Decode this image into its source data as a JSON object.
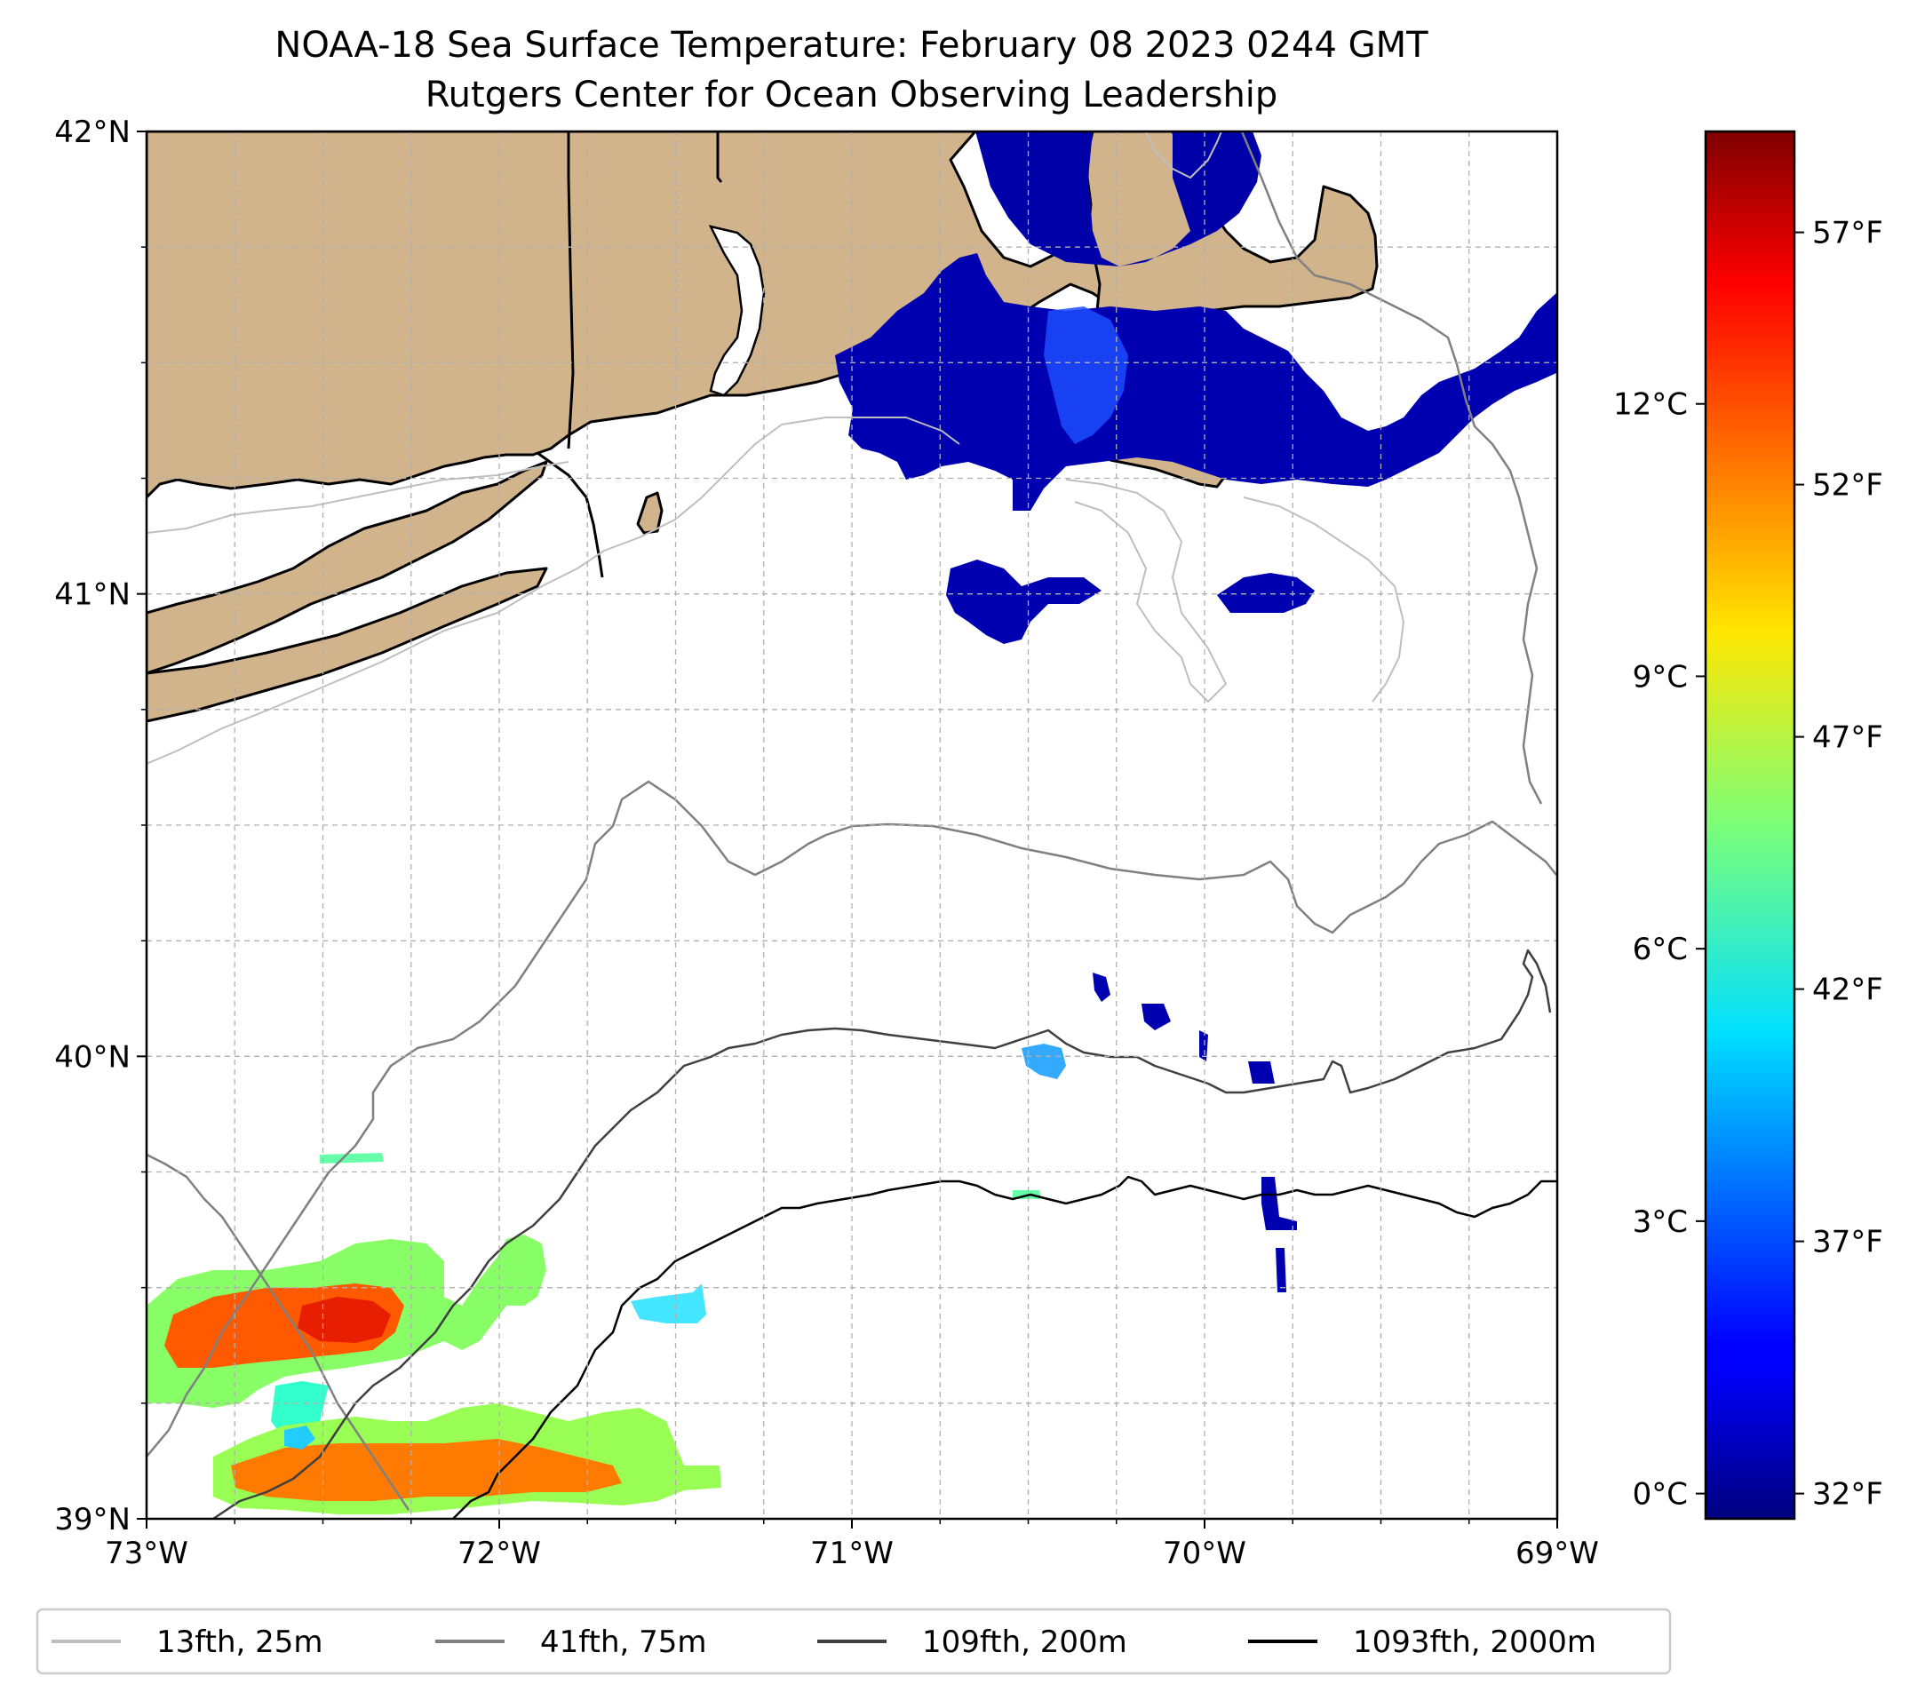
{
  "title": {
    "line1": "NOAA-18 Sea Surface Temperature: February 08 2023 0244 GMT",
    "line2": "Rutgers Center for Ocean Observing Leadership"
  },
  "map": {
    "lon_range": [
      -73,
      -69
    ],
    "lat_range": [
      39,
      42
    ],
    "lon_ticks": [
      {
        "value": -73,
        "label": "73°W"
      },
      {
        "value": -72,
        "label": "72°W"
      },
      {
        "value": -71,
        "label": "71°W"
      },
      {
        "value": -70,
        "label": "70°W"
      },
      {
        "value": -69,
        "label": "69°W"
      }
    ],
    "lat_ticks": [
      {
        "value": 39,
        "label": "39°N"
      },
      {
        "value": 40,
        "label": "40°N"
      },
      {
        "value": 41,
        "label": "41°N"
      },
      {
        "value": 42,
        "label": "42°N"
      }
    ],
    "minor_grid_step_lon": 0.25,
    "minor_grid_step_lat": 0.25,
    "grid": true,
    "land_color": "#d2b48c",
    "colormap": "jet"
  },
  "colorbar": {
    "celsius_ticks": [
      {
        "value": 0,
        "label": "0°C"
      },
      {
        "value": 3,
        "label": "3°C"
      },
      {
        "value": 6,
        "label": "6°C"
      },
      {
        "value": 9,
        "label": "9°C"
      },
      {
        "value": 12,
        "label": "12°C"
      }
    ],
    "fahrenheit_ticks": [
      {
        "value": 32,
        "label": "32°F"
      },
      {
        "value": 37,
        "label": "37°F"
      },
      {
        "value": 42,
        "label": "42°F"
      },
      {
        "value": 47,
        "label": "47°F"
      },
      {
        "value": 52,
        "label": "52°F"
      },
      {
        "value": 57,
        "label": "57°F"
      }
    ],
    "range_f": [
      31.5,
      59
    ]
  },
  "legend": {
    "placement": "bottom",
    "items": [
      {
        "label": "13fth, 25m",
        "color": "#bfbfbf"
      },
      {
        "label": "41fth, 75m",
        "color": "#808080"
      },
      {
        "label": "109fth, 200m",
        "color": "#404040"
      },
      {
        "label": "1093fth, 2000m",
        "color": "#000000"
      }
    ]
  }
}
